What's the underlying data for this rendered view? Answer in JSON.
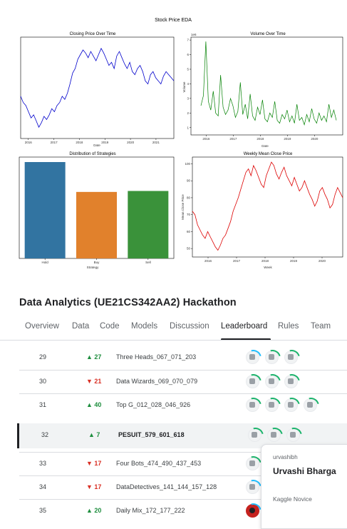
{
  "figure": {
    "title": "Stock Price EDA"
  },
  "chart_data": [
    {
      "type": "line",
      "title": "Closing Price Over Time",
      "xlabel": "Date",
      "ylabel": "",
      "color": "#0000cc",
      "x_ticks": [
        "2016",
        "2017",
        "2018",
        "2019",
        "2020",
        "2021"
      ],
      "series": [
        {
          "values": [
            70,
            66,
            64,
            60,
            56,
            58,
            54,
            50,
            53,
            57,
            55,
            58,
            62,
            60,
            64,
            66,
            70,
            68,
            72,
            78,
            85,
            88,
            94,
            97,
            100,
            98,
            95,
            99,
            96,
            93,
            97,
            101,
            98,
            94,
            90,
            92,
            88,
            96,
            99,
            95,
            91,
            88,
            92,
            86,
            84,
            88,
            90,
            86,
            80,
            78,
            84,
            86,
            82,
            80,
            78,
            83,
            86,
            84,
            82,
            80
          ]
        }
      ]
    },
    {
      "type": "line",
      "title": "Volume Over Time",
      "xlabel": "Date",
      "ylabel": "Volume",
      "y_offset_label": "1e6",
      "color": "#008000",
      "ylim": [
        0.5,
        7.2
      ],
      "y_ticks": [
        "1",
        "2",
        "3",
        "4",
        "5",
        "6",
        "7"
      ],
      "x_ticks": [
        "2016",
        "2017",
        "2018",
        "2019",
        "2020"
      ],
      "series": [
        {
          "values": [
            2.5,
            3.2,
            6.9,
            2.8,
            2.2,
            3.5,
            2.0,
            1.8,
            4.6,
            2.4,
            1.9,
            2.2,
            3.0,
            2.5,
            1.7,
            2.1,
            4.1,
            1.9,
            2.6,
            1.6,
            3.3,
            1.8,
            1.5,
            2.4,
            1.9,
            2.9,
            1.6,
            1.4,
            2.0,
            1.7,
            2.8,
            1.5,
            1.3,
            1.9,
            1.6,
            2.2,
            1.4,
            1.8,
            1.3,
            2.6,
            1.5,
            1.7,
            1.2,
            1.9,
            1.4,
            2.3,
            1.6,
            1.3,
            2.0,
            1.5,
            1.8,
            1.4,
            2.6,
            1.7,
            2.2,
            1.5
          ]
        }
      ]
    },
    {
      "type": "bar",
      "title": "Distribution of Strategies",
      "xlabel": "Strategy",
      "ylabel": "",
      "categories": [
        "Hold",
        "Buy",
        "Sell"
      ],
      "values": [
        100,
        69,
        70
      ],
      "colors": [
        "#3274a1",
        "#e1812c",
        "#3a923a"
      ]
    },
    {
      "type": "line",
      "title": "Weekly Mean Close Price",
      "xlabel": "Week",
      "ylabel": "Mean Close Price",
      "color": "#dd0000",
      "ylim": [
        45,
        104
      ],
      "y_ticks": [
        "50",
        "60",
        "70",
        "80",
        "90",
        "100"
      ],
      "x_ticks": [
        "2016",
        "2017",
        "2018",
        "2019",
        "2020"
      ],
      "series": [
        {
          "values": [
            72,
            70,
            64,
            61,
            58,
            56,
            60,
            57,
            54,
            51,
            49,
            52,
            56,
            58,
            62,
            66,
            72,
            76,
            80,
            85,
            90,
            95,
            97,
            93,
            99,
            96,
            92,
            88,
            86,
            93,
            97,
            101,
            99,
            94,
            91,
            95,
            98,
            93,
            90,
            87,
            92,
            88,
            84,
            86,
            90,
            86,
            82,
            79,
            75,
            78,
            84,
            86,
            82,
            79,
            74,
            76,
            82,
            86,
            83,
            80
          ]
        }
      ]
    }
  ],
  "page": {
    "title": "Data Analytics (UE21CS342AA2) Hackathon"
  },
  "tabs": [
    {
      "label": "Overview"
    },
    {
      "label": "Data"
    },
    {
      "label": "Code"
    },
    {
      "label": "Models"
    },
    {
      "label": "Discussion"
    },
    {
      "label": "Leaderboard"
    },
    {
      "label": "Rules"
    },
    {
      "label": "Team"
    }
  ],
  "leaderboard": [
    {
      "rank": "29",
      "delta": "▲ 27",
      "team": "Three Heads_067_071_203"
    },
    {
      "rank": "30",
      "delta": "▼ 21",
      "team": "Data Wizards_069_070_079"
    },
    {
      "rank": "31",
      "delta": "▲ 40",
      "team": "Top G_012_028_046_926"
    },
    {
      "rank": "32",
      "delta": "▲ 7",
      "team": "PESUIT_579_601_618"
    },
    {
      "rank": "33",
      "delta": "▼ 17",
      "team": "Four Bots_474_490_437_453"
    },
    {
      "rank": "34",
      "delta": "▼ 17",
      "team": "DataDetectives_141_144_157_128"
    },
    {
      "rank": "35",
      "delta": "▲ 20",
      "team": "Daily Mix_172_177_222"
    }
  ],
  "colors": {
    "up": "#1e8e3e",
    "down": "#d93025"
  },
  "popover": {
    "username": "urvashibh",
    "name": "Urvashi Bharga",
    "tier": "Kaggle Novice"
  }
}
